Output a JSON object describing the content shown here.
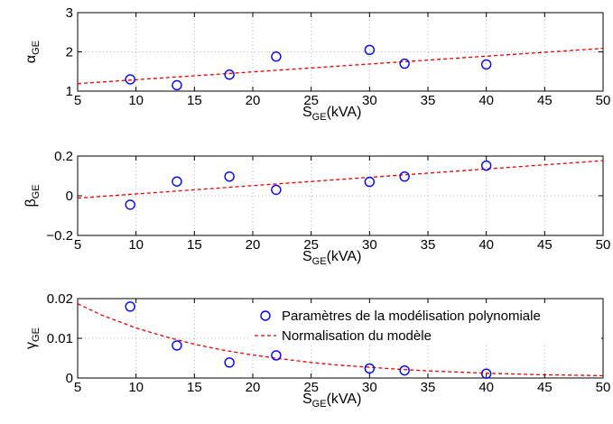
{
  "chart_data": [
    {
      "type": "scatter",
      "ylabel": {
        "symbol": "α",
        "subscript": "GE"
      },
      "xlabel": {
        "main": "S",
        "subscript": "GE",
        "suffix": "(kVA)"
      },
      "xlim": [
        5,
        50
      ],
      "ylim": [
        1,
        3
      ],
      "xticks": [
        5,
        10,
        15,
        20,
        25,
        30,
        35,
        40,
        45,
        50
      ],
      "yticks": [
        1,
        2,
        3
      ],
      "ytick_labels": [
        "1",
        "2",
        "3"
      ],
      "grid": true,
      "scatter": {
        "x": [
          9.5,
          13.5,
          18,
          22,
          30,
          33,
          40
        ],
        "y": [
          1.3,
          1.15,
          1.42,
          1.88,
          2.05,
          1.7,
          1.68
        ]
      },
      "fit": {
        "kind": "linear",
        "x": [
          5,
          50
        ],
        "y": [
          1.19,
          2.09
        ]
      }
    },
    {
      "type": "scatter",
      "ylabel": {
        "symbol": "β",
        "subscript": "GE"
      },
      "xlabel": {
        "main": "S",
        "subscript": "GE",
        "suffix": "(kVA)"
      },
      "xlim": [
        5,
        50
      ],
      "ylim": [
        -0.2,
        0.2
      ],
      "xticks": [
        5,
        10,
        15,
        20,
        25,
        30,
        35,
        40,
        45,
        50
      ],
      "yticks": [
        -0.2,
        0,
        0.2
      ],
      "ytick_labels": [
        "−0.2",
        "0",
        "0.2"
      ],
      "grid": true,
      "scatter": {
        "x": [
          9.5,
          13.5,
          18,
          22,
          30,
          33,
          40
        ],
        "y": [
          -0.045,
          0.072,
          0.097,
          0.03,
          0.07,
          0.097,
          0.152
        ]
      },
      "fit": {
        "kind": "linear",
        "x": [
          5,
          50
        ],
        "y": [
          -0.012,
          0.177
        ]
      }
    },
    {
      "type": "scatter",
      "ylabel": {
        "symbol": "γ",
        "subscript": "GE"
      },
      "xlabel": {
        "main": "S",
        "subscript": "GE",
        "suffix": "(kVA)"
      },
      "xlim": [
        5,
        50
      ],
      "ylim": [
        0,
        0.02
      ],
      "xticks": [
        5,
        10,
        15,
        20,
        25,
        30,
        35,
        40,
        45,
        50
      ],
      "yticks": [
        0,
        0.01,
        0.02
      ],
      "ytick_labels": [
        "0",
        "0.01",
        "0.02"
      ],
      "grid": true,
      "scatter": {
        "x": [
          9.5,
          13.5,
          18,
          22,
          30,
          33,
          40
        ],
        "y": [
          0.018,
          0.0082,
          0.0039,
          0.0057,
          0.0024,
          0.0019,
          0.0011
        ]
      },
      "fit": {
        "kind": "exponential",
        "x": [
          5,
          7,
          10,
          12.5,
          15,
          17.5,
          20,
          22.5,
          25,
          27.5,
          30,
          32.5,
          35,
          37.5,
          40,
          42.5,
          45,
          47.5,
          50
        ],
        "y": [
          0.0187,
          0.0159,
          0.0126,
          0.0104,
          0.0085,
          0.007,
          0.0058,
          0.0048,
          0.0039,
          0.0032,
          0.0027,
          0.0022,
          0.0018,
          0.0015,
          0.0012,
          0.001,
          0.0008,
          0.0007,
          0.0006
        ]
      },
      "legend": {
        "placement": "top-right",
        "entries": [
          {
            "label": "Paramètres de la modélisation polynomiale",
            "marker": "circle"
          },
          {
            "label": "Normalisation du modèle",
            "marker": "dashed-line"
          }
        ]
      }
    }
  ],
  "colors": {
    "marker": "#0000ff",
    "fit": "#e60000",
    "grid": "#b3b3b3",
    "axis": "#000000"
  }
}
